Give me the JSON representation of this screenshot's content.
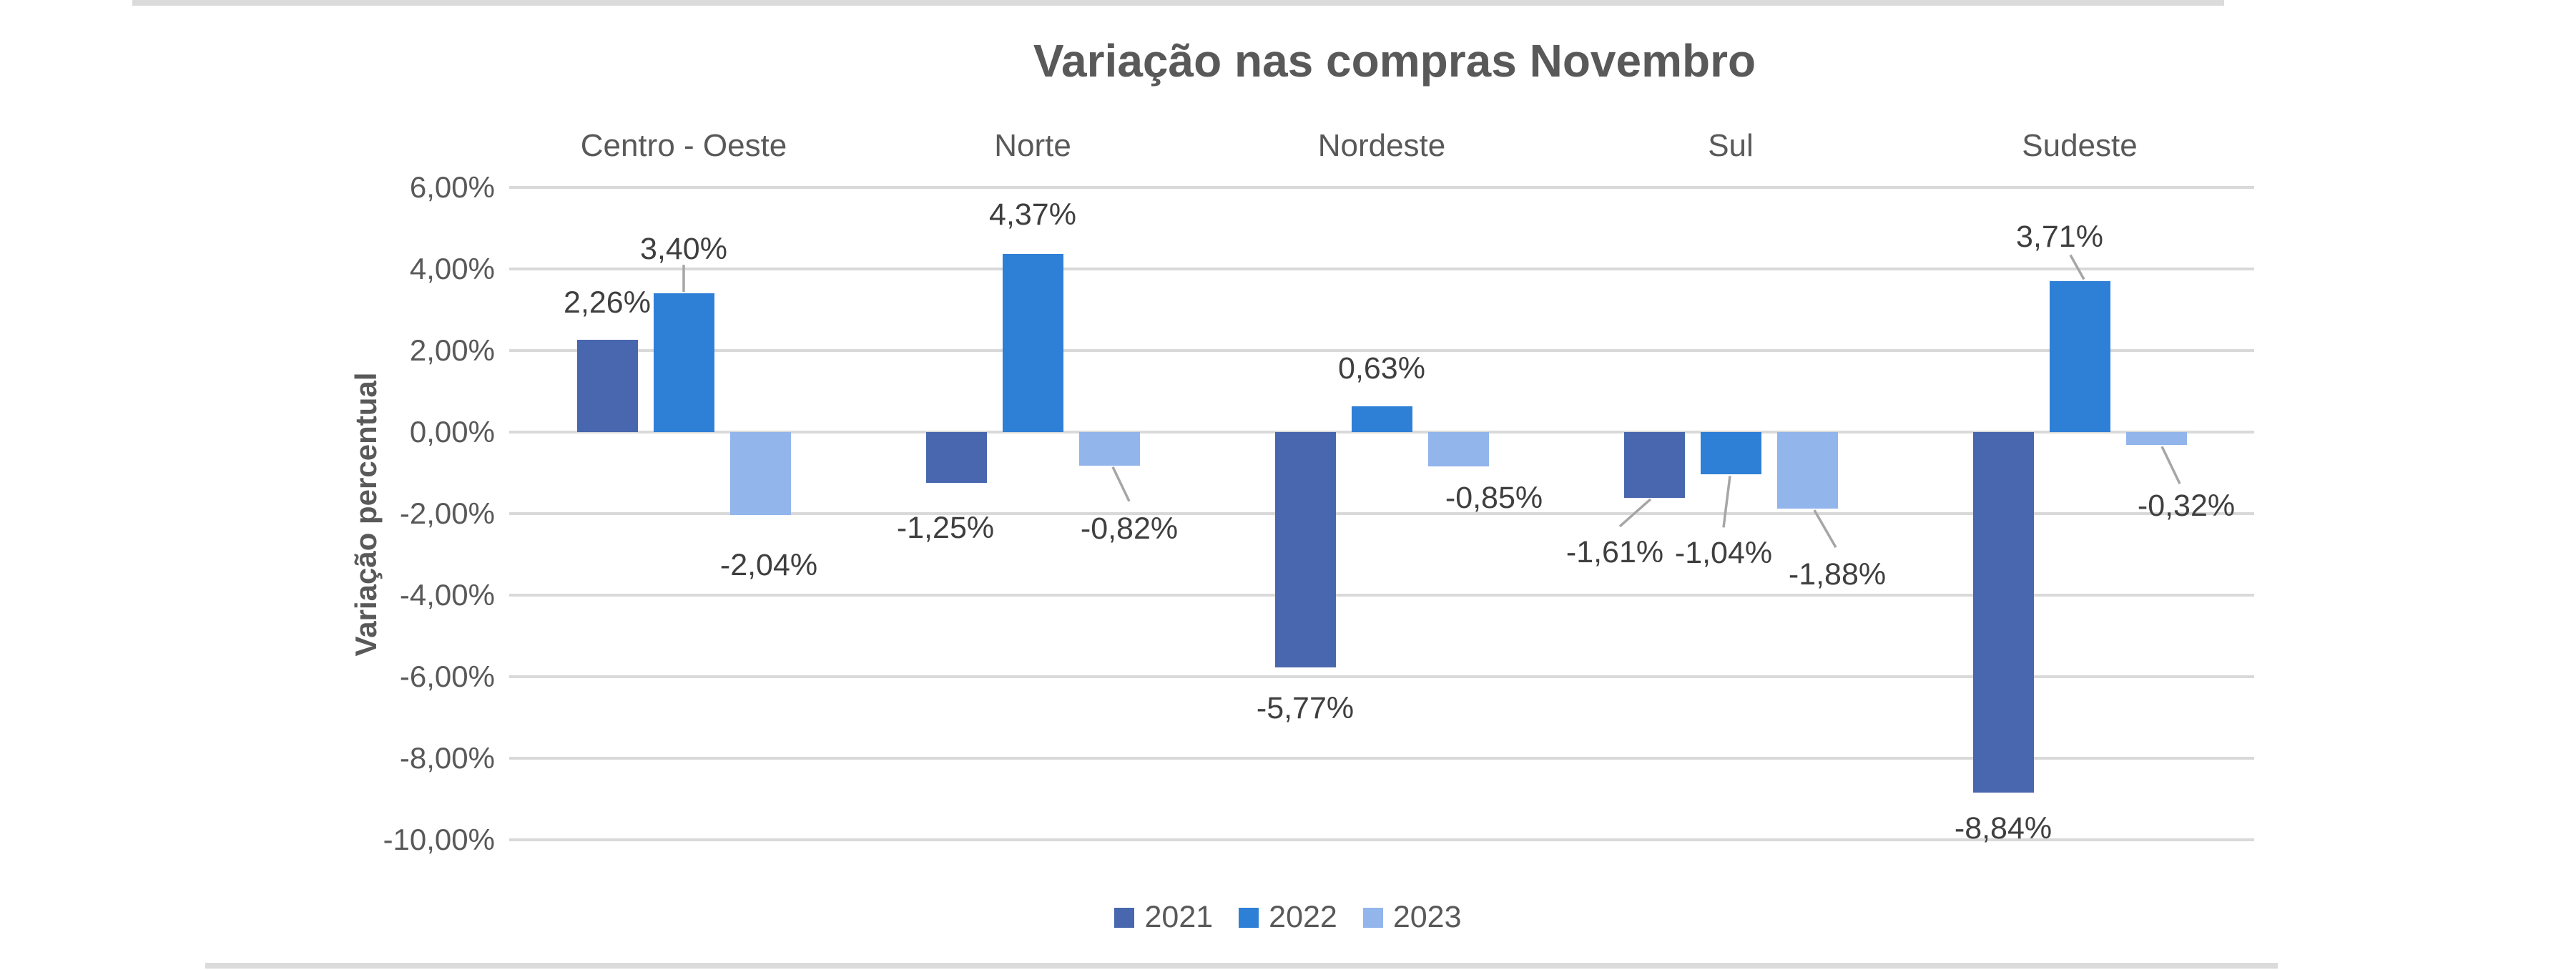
{
  "chart_data": {
    "type": "bar",
    "title": "Variação nas compras Novembro",
    "ylabel": "Variação percentual",
    "xlabel": "",
    "categories": [
      "Centro - Oeste",
      "Norte",
      "Nordeste",
      "Sul",
      "Sudeste"
    ],
    "series": [
      {
        "name": "2021",
        "color": "#4867AE",
        "values": [
          2.26,
          -1.25,
          -5.77,
          -1.61,
          -8.84
        ],
        "labels": [
          "2,26%",
          "-1,25%",
          "-5,77%",
          "-1,61%",
          "-8,84%"
        ],
        "label_pos": [
          {
            "dx": 0,
            "dy": -52
          },
          {
            "dx": -15,
            "dy": 63
          },
          {
            "dx": 0,
            "dy": 57
          },
          {
            "dx": -55,
            "dy": 76,
            "leader": [
              -5,
              2,
              -48,
              40
            ]
          },
          {
            "dx": 0,
            "dy": 50
          }
        ]
      },
      {
        "name": "2022",
        "color": "#2E7FD6",
        "values": [
          3.4,
          4.37,
          0.63,
          -1.04,
          3.71
        ],
        "labels": [
          "3,40%",
          "4,37%",
          "0,63%",
          "-1,04%",
          "3,71%"
        ],
        "label_pos": [
          {
            "dx": 0,
            "dy": -62,
            "leader": [
              0,
              -2,
              0,
              -40
            ]
          },
          {
            "dx": 0,
            "dy": -55
          },
          {
            "dx": 0,
            "dy": -53
          },
          {
            "dx": -10,
            "dy": 110,
            "leader": [
              -1,
              2,
              -10,
              74
            ]
          },
          {
            "dx": -28,
            "dy": -62,
            "leader": [
              6,
              -2,
              -13,
              -36
            ]
          }
        ]
      },
      {
        "name": "2023",
        "color": "#92B5EC",
        "values": [
          -2.04,
          -0.82,
          -0.85,
          -1.88,
          -0.32
        ],
        "labels": [
          "-2,04%",
          "-0,82%",
          "-0,85%",
          "-1,88%",
          "-0,32%"
        ],
        "label_pos": [
          {
            "dx": 12,
            "dy": 70
          },
          {
            "dx": 28,
            "dy": 88,
            "leader": [
              5,
              2,
              28,
              50
            ]
          },
          {
            "dx": 50,
            "dy": 44
          },
          {
            "dx": 42,
            "dy": 92,
            "leader": [
              10,
              2,
              40,
              54
            ]
          },
          {
            "dx": 42,
            "dy": 85,
            "leader": [
              8,
              2,
              33,
              54
            ]
          }
        ]
      }
    ],
    "y_ticks": [
      "6,00%",
      "4,00%",
      "2,00%",
      "0,00%",
      "-2,00%",
      "-4,00%",
      "-6,00%",
      "-8,00%",
      "-10,00%"
    ],
    "y_tick_values": [
      6,
      4,
      2,
      0,
      -2,
      -4,
      -6,
      -8,
      -10
    ],
    "ylim": [
      -10,
      6
    ],
    "grid": true,
    "legend_position": "bottom",
    "legend": [
      "2021",
      "2022",
      "2023"
    ]
  },
  "palette": {
    "grid_color": "#d9d9d9",
    "axis_text_color": "#595959",
    "data_label_color": "#3f3f3f",
    "leader_line_color": "#a6a6a6",
    "border_rule_color": "#dbdbdb",
    "background": "#ffffff"
  }
}
